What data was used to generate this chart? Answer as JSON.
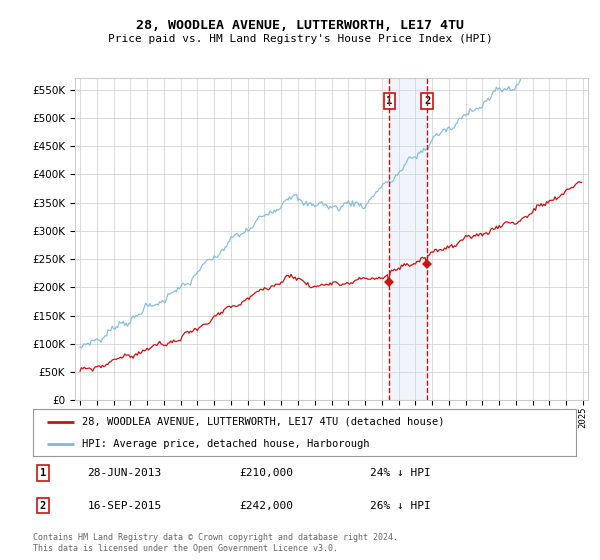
{
  "title": "28, WOODLEA AVENUE, LUTTERWORTH, LE17 4TU",
  "subtitle": "Price paid vs. HM Land Registry's House Price Index (HPI)",
  "yticks": [
    0,
    50000,
    100000,
    150000,
    200000,
    250000,
    300000,
    350000,
    400000,
    450000,
    500000,
    550000
  ],
  "hpi_color": "#7ab8e0",
  "price_color": "#cc1111",
  "shade_color": "#cce0f0",
  "vline_color": "#cc1111",
  "sale1_yr_float": 2013.458,
  "sale2_yr_float": 2015.708,
  "sale1": {
    "date": "28-JUN-2013",
    "price": 210000,
    "label": "24% ↓ HPI"
  },
  "sale2": {
    "date": "16-SEP-2015",
    "price": 242000,
    "label": "26% ↓ HPI"
  },
  "legend_label_price": "28, WOODLEA AVENUE, LUTTERWORTH, LE17 4TU (detached house)",
  "legend_label_hpi": "HPI: Average price, detached house, Harborough",
  "footer": "Contains HM Land Registry data © Crown copyright and database right 2024.\nThis data is licensed under the Open Government Licence v3.0.",
  "bg_color": "#ffffff",
  "grid_color": "#cccccc",
  "years_start": 1995,
  "years_end": 2025,
  "ylim_max": 570000,
  "xlim_min": 1994.7,
  "xlim_max": 2025.3
}
